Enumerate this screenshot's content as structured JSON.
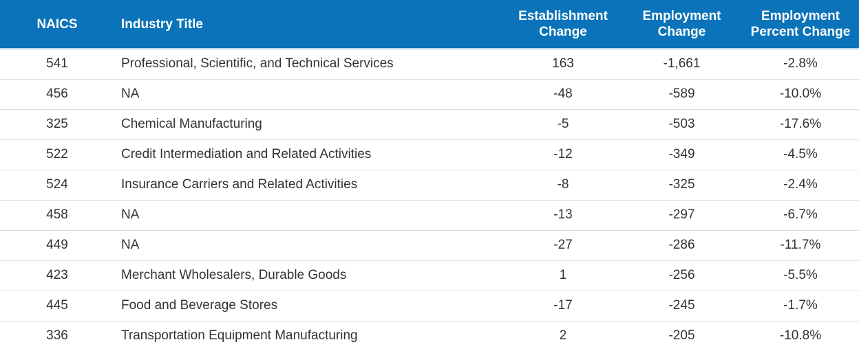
{
  "table": {
    "headers": {
      "naics": "NAICS",
      "title": "Industry Title",
      "est_line1": "Establishment",
      "est_line2": "Change",
      "emp_line1": "Employment",
      "emp_line2": "Change",
      "pct_line1": "Employment",
      "pct_line2": "Percent Change"
    },
    "rows": [
      {
        "naics": "541",
        "title": "Professional, Scientific, and Technical Services",
        "est": "163",
        "emp": "-1,661",
        "pct": "-2.8%"
      },
      {
        "naics": "456",
        "title": "NA",
        "est": "-48",
        "emp": "-589",
        "pct": "-10.0%"
      },
      {
        "naics": "325",
        "title": "Chemical Manufacturing",
        "est": "-5",
        "emp": "-503",
        "pct": "-17.6%"
      },
      {
        "naics": "522",
        "title": "Credit Intermediation and Related Activities",
        "est": "-12",
        "emp": "-349",
        "pct": "-4.5%"
      },
      {
        "naics": "524",
        "title": "Insurance Carriers and Related Activities",
        "est": "-8",
        "emp": "-325",
        "pct": "-2.4%"
      },
      {
        "naics": "458",
        "title": "NA",
        "est": "-13",
        "emp": "-297",
        "pct": "-6.7%"
      },
      {
        "naics": "449",
        "title": "NA",
        "est": "-27",
        "emp": "-286",
        "pct": "-11.7%"
      },
      {
        "naics": "423",
        "title": "Merchant Wholesalers, Durable Goods",
        "est": "1",
        "emp": "-256",
        "pct": "-5.5%"
      },
      {
        "naics": "445",
        "title": "Food and Beverage Stores",
        "est": "-17",
        "emp": "-245",
        "pct": "-1.7%"
      },
      {
        "naics": "336",
        "title": "Transportation Equipment Manufacturing",
        "est": "2",
        "emp": "-205",
        "pct": "-10.8%"
      }
    ]
  },
  "colors": {
    "header_bg": "#0a73b9",
    "header_text": "#ffffff",
    "body_text": "#333333",
    "row_divider": "#dcdcdc"
  }
}
